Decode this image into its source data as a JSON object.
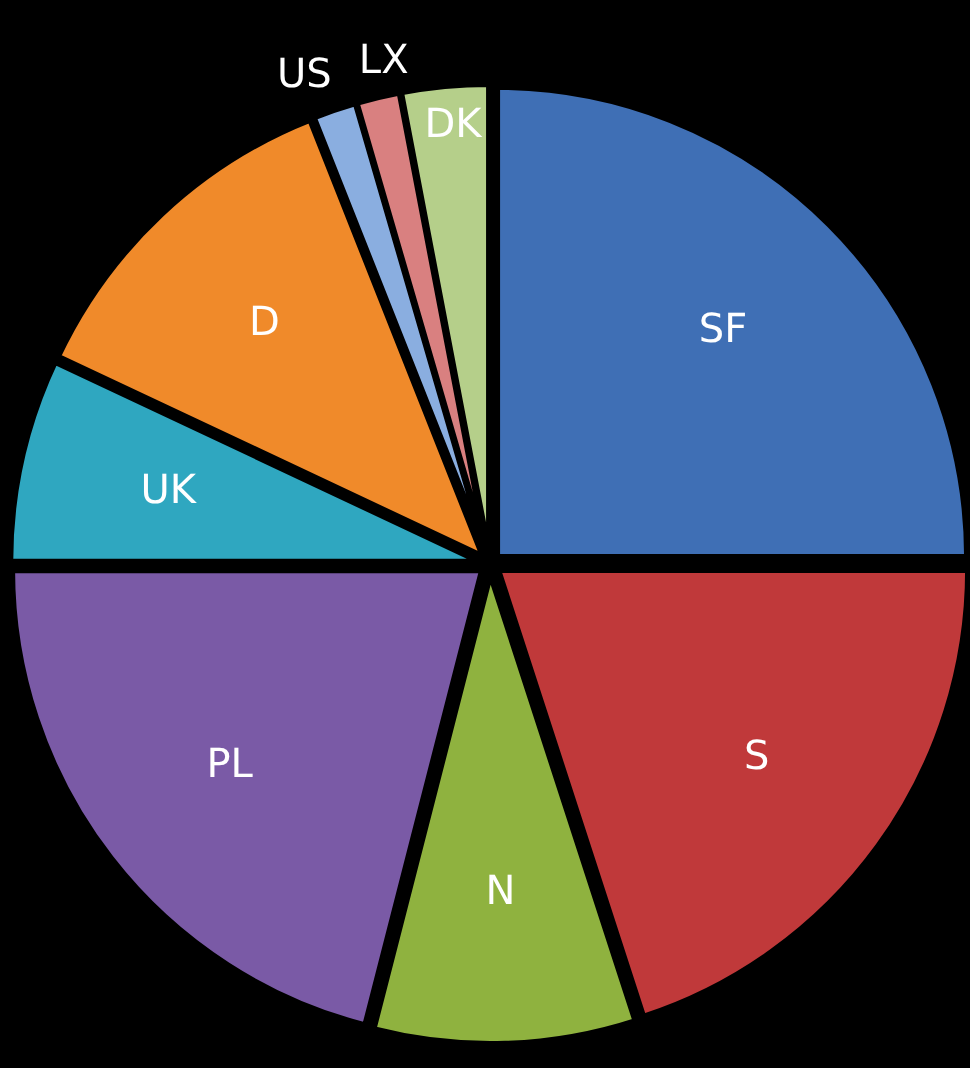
{
  "chart_data": {
    "type": "pie",
    "categories": [
      "SF",
      "S",
      "N",
      "PL",
      "UK",
      "D",
      "US",
      "LX",
      "DK"
    ],
    "values": [
      25,
      20,
      9,
      21,
      7,
      12,
      1.5,
      1.5,
      3
    ],
    "colors": [
      "#3f6fb5",
      "#c0393a",
      "#8fb23f",
      "#7a5aa6",
      "#2fa7c0",
      "#f08a2a",
      "#8aaee0",
      "#d98080",
      "#b5cf8a"
    ]
  }
}
